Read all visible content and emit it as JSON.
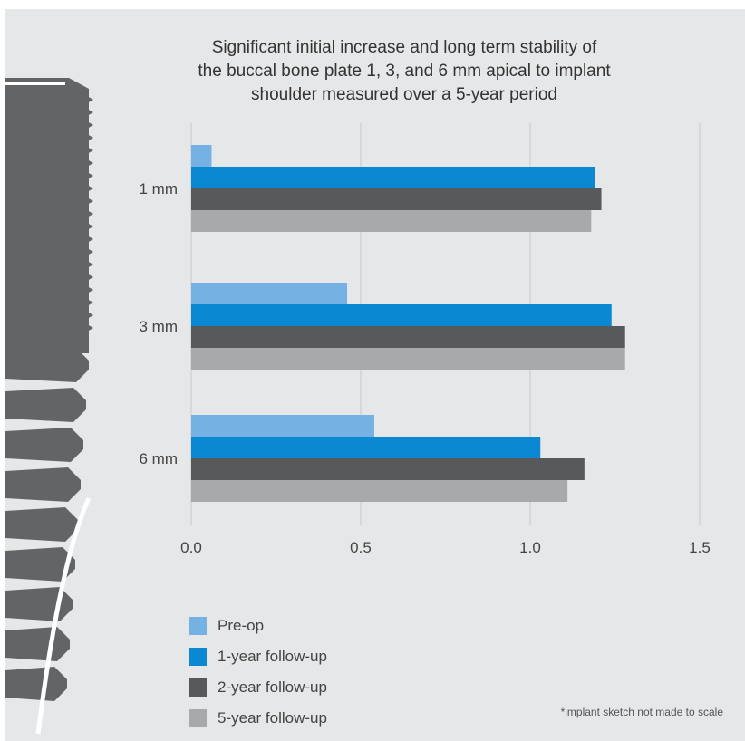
{
  "colors": {
    "background": "#e6e7e8",
    "grid": "#c8c9cb",
    "implant": "#636466"
  },
  "chart_data": {
    "type": "bar",
    "orientation": "horizontal",
    "title": "Significant initial increase and long term stability of\nthe buccal bone plate 1, 3, and 6 mm apical to implant\nshoulder measured over a 5-year period",
    "categories": [
      "1 mm",
      "3 mm",
      "6 mm"
    ],
    "series": [
      {
        "name": "Pre-op",
        "color": "#75b2e3",
        "values": [
          0.06,
          0.46,
          0.54
        ]
      },
      {
        "name": "1-year follow-up",
        "color": "#0a88d1",
        "values": [
          1.19,
          1.24,
          1.03
        ]
      },
      {
        "name": "2-year follow-up",
        "color": "#58595b",
        "values": [
          1.21,
          1.28,
          1.16
        ]
      },
      {
        "name": "5-year follow-up",
        "color": "#a8a9ab",
        "values": [
          1.18,
          1.28,
          1.11
        ]
      }
    ],
    "xlim": [
      0,
      1.5
    ],
    "xticks": [
      "0.0",
      "0.5",
      "1.0",
      "1.5"
    ],
    "grid": "vertical",
    "legend_position": "bottom-left"
  },
  "footnote": "*implant sketch not made to scale"
}
